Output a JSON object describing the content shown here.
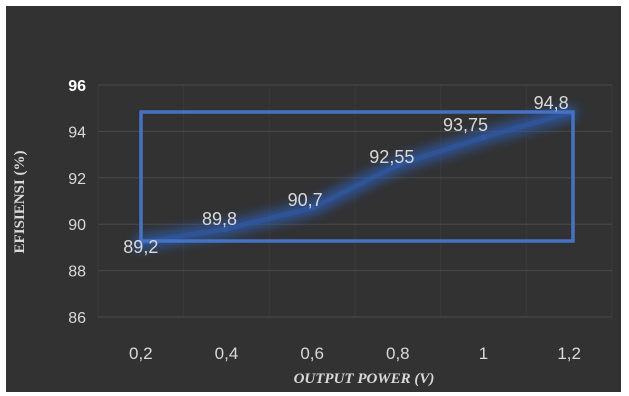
{
  "chart_data": {
    "type": "line",
    "x": [
      0.2,
      0.4,
      0.6,
      0.8,
      1.0,
      1.2
    ],
    "x_tick_labels": [
      "0,2",
      "0,4",
      "0,6",
      "0,8",
      "1",
      "1,2"
    ],
    "series": [
      {
        "values": [
          89.2,
          89.8,
          90.7,
          92.55,
          93.75,
          94.8
        ],
        "data_labels": [
          "89,2",
          "89,8",
          "90,7",
          "92,55",
          "93,75",
          "94,8"
        ],
        "color": "#2f5aa8"
      }
    ],
    "xlabel": "OUTPUT POWER (V)",
    "ylabel": "EFISIENSI (%)",
    "y_tick_labels": [
      "86",
      "88",
      "90",
      "92",
      "94",
      "96"
    ],
    "ylim": [
      86,
      96
    ],
    "grid": true,
    "legend": "none",
    "annotation": {
      "type": "highlight-rectangle",
      "color": "#4472c4"
    },
    "background": "#323232"
  }
}
